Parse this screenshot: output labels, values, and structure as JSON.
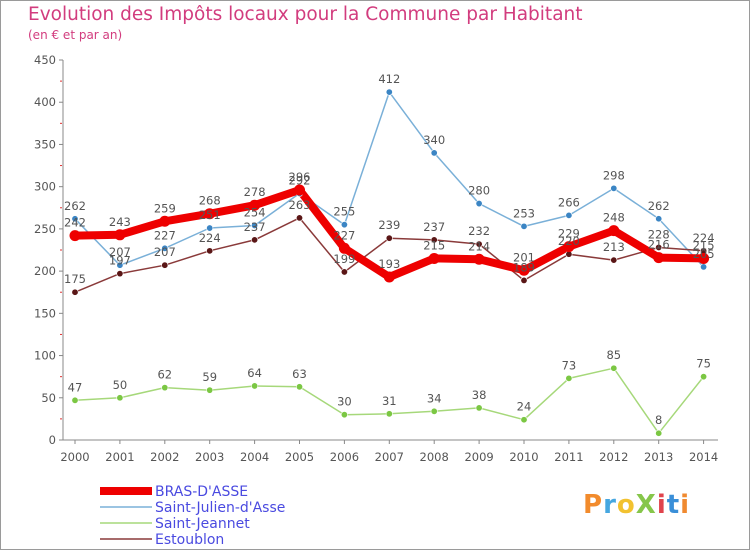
{
  "header": {
    "title": "Evolution des Impôts locaux pour la Commune par Habitant",
    "subtitle": "(en € et par an)"
  },
  "logo": {
    "text": "ProXiti",
    "colors": [
      "#f28b2c",
      "#46a7e0",
      "#f2c230",
      "#86c64a",
      "#e0434c",
      "#3a8fd8",
      "#f08a30"
    ]
  },
  "chart_data": {
    "type": "line",
    "title": "Evolution des Impôts locaux pour la Commune par Habitant",
    "subtitle": "(en € et par an)",
    "x": [
      "2000",
      "2001",
      "2002",
      "2003",
      "2004",
      "2005",
      "2006",
      "2007",
      "2008",
      "2009",
      "2010",
      "2011",
      "2012",
      "2013",
      "2014"
    ],
    "ylim": [
      0,
      450
    ],
    "yticks": [
      0,
      50,
      100,
      150,
      200,
      250,
      300,
      350,
      400,
      450
    ],
    "grid": false,
    "legend": "bottom-left",
    "series": [
      {
        "name": "BRAS-D'ASSE",
        "color": "#ee0000",
        "dot": "#ee0000",
        "width": 8,
        "values": [
          242,
          243,
          259,
          268,
          278,
          296,
          227,
          193,
          215,
          214,
          201,
          229,
          248,
          216,
          215
        ],
        "labels": [
          "242",
          "243",
          "259",
          "268",
          "278",
          "296",
          "227",
          "193",
          "215",
          "214",
          "201",
          "229",
          "248",
          "216",
          "215"
        ]
      },
      {
        "name": "Saint-Julien-d'Asse",
        "color": "#7ab0d8",
        "dot": "#3b85c4",
        "width": 1.5,
        "values": [
          262,
          207,
          227,
          251,
          254,
          292,
          255,
          412,
          340,
          280,
          253,
          266,
          298,
          262,
          205
        ],
        "labels": [
          "262",
          "207",
          "227",
          "251",
          "254",
          "292",
          "255",
          "412",
          "340",
          "280",
          "253",
          "266",
          "298",
          "262",
          "205"
        ]
      },
      {
        "name": "Saint-Jeannet",
        "color": "#a6d87a",
        "dot": "#7bc743",
        "width": 1.5,
        "values": [
          47,
          50,
          62,
          59,
          64,
          63,
          30,
          31,
          34,
          38,
          24,
          73,
          85,
          8,
          75
        ],
        "labels": [
          "47",
          "50",
          "62",
          "59",
          "64",
          "63",
          "30",
          "31",
          "34",
          "38",
          "24",
          "73",
          "85",
          "8",
          "75"
        ]
      },
      {
        "name": "Estoublon",
        "color": "#8a3a3a",
        "dot": "#5a1616",
        "width": 1.5,
        "values": [
          175,
          197,
          207,
          224,
          237,
          263,
          199,
          239,
          237,
          232,
          189,
          220,
          213,
          228,
          224
        ],
        "labels": [
          "175",
          "197",
          "207",
          "224",
          "237",
          "263",
          "199",
          "239",
          "237",
          "232",
          "189",
          "220",
          "213",
          "228",
          "224"
        ]
      }
    ]
  }
}
